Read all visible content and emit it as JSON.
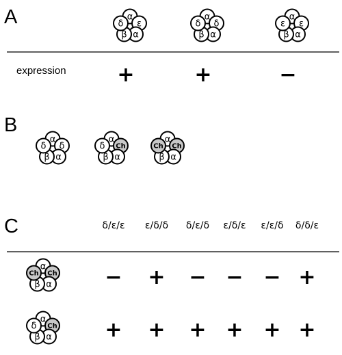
{
  "panels": {
    "a": {
      "letter": "A",
      "row_label": "expression",
      "receptors": [
        [
          "α",
          "ε",
          "α",
          "β",
          "δ"
        ],
        [
          "α",
          "δ",
          "α",
          "β",
          "δ"
        ],
        [
          "α",
          "ε",
          "α",
          "β",
          "ε"
        ]
      ],
      "expression": [
        "+",
        "+",
        "-"
      ]
    },
    "b": {
      "letter": "B",
      "receptors": [
        [
          "α",
          "δ",
          "α",
          "β",
          "δ"
        ],
        [
          "α",
          "Ch",
          "α",
          "β",
          "δ"
        ],
        [
          "α",
          "Ch",
          "α",
          "β",
          "Ch"
        ]
      ]
    },
    "c": {
      "letter": "C",
      "columns": [
        "δ/ε/ε",
        "ε/δ/δ",
        "δ/ε/δ",
        "ε/δ/ε",
        "ε/ε/δ",
        "δ/δ/ε"
      ],
      "rows": [
        {
          "receptor": [
            "α",
            "Ch",
            "α",
            "β",
            "Ch"
          ],
          "signs": [
            "-",
            "+",
            "-",
            "-",
            "-",
            "+"
          ]
        },
        {
          "receptor": [
            "α",
            "Ch",
            "α",
            "β",
            "δ"
          ],
          "signs": [
            "+",
            "+",
            "+",
            "+",
            "+",
            "+"
          ]
        }
      ]
    }
  },
  "colors": {
    "chimera_fill": "#c8c8c8",
    "outline": "#000000",
    "background": "#ffffff"
  }
}
